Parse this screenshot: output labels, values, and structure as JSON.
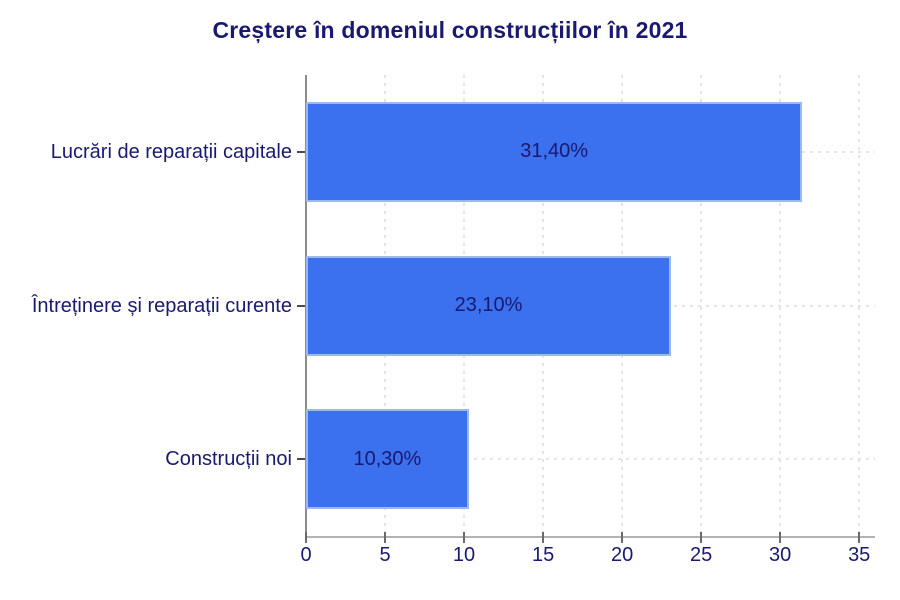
{
  "chart_data": {
    "type": "bar",
    "orientation": "horizontal",
    "title": "Creștere în domeniul construcțiilor în 2021",
    "categories": [
      "Lucrări de reparații capitale",
      "Întreținere și reparații curente",
      "Construcții noi"
    ],
    "values": [
      31.4,
      23.1,
      10.3
    ],
    "value_labels": [
      "31,40%",
      "23,10%",
      "10,30%"
    ],
    "value_label_position": "inside-center",
    "xlabel": "",
    "ylabel": "",
    "xlim": [
      0,
      36
    ],
    "xticks": [
      0,
      5,
      10,
      15,
      20,
      25,
      30,
      35
    ],
    "grid": "dotted-both-axes",
    "legend": "none",
    "colors": {
      "bar_fill": "#3b70ee",
      "bar_border": "#9cb8ec",
      "title_text": "#191970",
      "label_text": "#191970",
      "tick_text": "#191970",
      "gridline": "#e4e4e4",
      "axis_line": "#b3b3b3",
      "spine_line": "#8c8c8c",
      "background": "#ffffff"
    }
  }
}
